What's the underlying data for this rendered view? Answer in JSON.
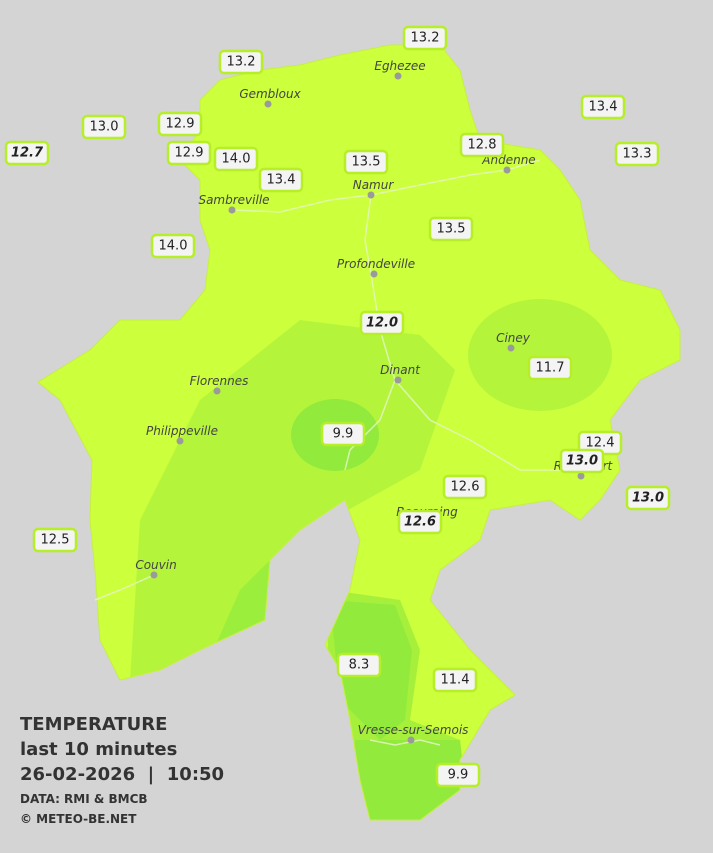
{
  "legend": {
    "title": "TEMPERATURE",
    "period": "last 10 minutes",
    "datetime": "26-02-2026  |  10:50",
    "source": "DATA: RMI & BMCB",
    "copyright": "© METEO-BE.NET"
  },
  "cities": [
    "Eghezee",
    "Gembloux",
    "Andenne",
    "Namur",
    "Sambreville",
    "Profondeville",
    "Ciney",
    "Dinant",
    "Florennes",
    "Philippeville",
    "Rochefort",
    "Beauraing",
    "Couvin",
    "Vresse-sur-Semois"
  ],
  "stations": [
    {
      "label": "13.2",
      "italic": false
    },
    {
      "label": "13.2",
      "italic": false
    },
    {
      "label": "13.0",
      "italic": false
    },
    {
      "label": "12.9",
      "italic": false
    },
    {
      "label": "12.7",
      "italic": true
    },
    {
      "label": "12.9",
      "italic": false
    },
    {
      "label": "14.0",
      "italic": false
    },
    {
      "label": "13.4",
      "italic": false
    },
    {
      "label": "13.5",
      "italic": false
    },
    {
      "label": "12.8",
      "italic": false
    },
    {
      "label": "13.4",
      "italic": false
    },
    {
      "label": "13.3",
      "italic": false
    },
    {
      "label": "14.0",
      "italic": false
    },
    {
      "label": "13.5",
      "italic": false
    },
    {
      "label": "12.0",
      "italic": true
    },
    {
      "label": "11.7",
      "italic": false
    },
    {
      "label": "9.9",
      "italic": false
    },
    {
      "label": "12.4",
      "italic": false
    },
    {
      "label": "13.0",
      "italic": true
    },
    {
      "label": "13.0",
      "italic": true
    },
    {
      "label": "12.6",
      "italic": false
    },
    {
      "label": "12.6",
      "italic": true
    },
    {
      "label": "12.5",
      "italic": false
    },
    {
      "label": "8.3",
      "italic": false
    },
    {
      "label": "11.4",
      "italic": false
    },
    {
      "label": "9.9",
      "italic": false
    }
  ]
}
